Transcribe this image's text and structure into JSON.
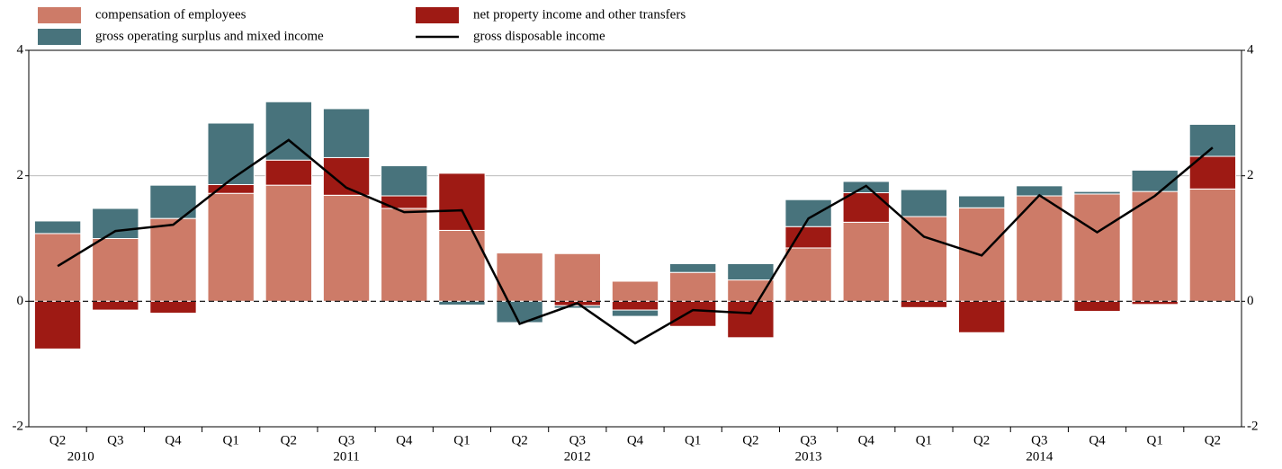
{
  "chart_data": {
    "type": "bar",
    "categories": [
      "Q2",
      "Q3",
      "Q4",
      "Q1",
      "Q2",
      "Q3",
      "Q4",
      "Q1",
      "Q2",
      "Q3",
      "Q4",
      "Q1",
      "Q2",
      "Q3",
      "Q4",
      "Q1",
      "Q2",
      "Q3",
      "Q4",
      "Q1",
      "Q2"
    ],
    "years": [
      "2010",
      "2011",
      "2012",
      "2013",
      "2014"
    ],
    "series": [
      {
        "name": "compensation of employees",
        "color": "#cd7b68",
        "values": [
          1.08,
          1.0,
          1.32,
          1.72,
          1.85,
          1.69,
          1.48,
          1.13,
          0.77,
          0.76,
          0.32,
          0.46,
          0.34,
          0.85,
          1.26,
          1.35,
          1.49,
          1.68,
          1.71,
          1.75,
          1.79
        ]
      },
      {
        "name": "net property income and other transfers",
        "color": "#9e1a14",
        "values": [
          -0.76,
          -0.14,
          -0.19,
          0.14,
          0.4,
          0.6,
          0.2,
          0.91,
          0,
          -0.07,
          -0.14,
          -0.4,
          -0.58,
          0.34,
          0.47,
          -0.1,
          -0.5,
          0,
          -0.16,
          -0.05,
          0.52
        ]
      },
      {
        "name": "gross operating surplus and mixed income",
        "color": "#48737c",
        "values": [
          0.2,
          0.48,
          0.53,
          0.98,
          0.93,
          0.78,
          0.48,
          -0.06,
          -0.34,
          -0.04,
          -0.1,
          0.14,
          0.26,
          0.43,
          0.18,
          0.43,
          0.19,
          0.16,
          0.04,
          0.34,
          0.51
        ]
      },
      {
        "name": "gross disposable income",
        "type": "line",
        "color": "#000000",
        "values": [
          0.56,
          1.12,
          1.22,
          1.94,
          2.57,
          1.81,
          1.42,
          1.45,
          -0.36,
          -0.03,
          -0.67,
          -0.14,
          -0.19,
          1.32,
          1.84,
          1.03,
          0.73,
          1.69,
          1.1,
          1.68,
          2.45
        ]
      }
    ],
    "ylim": [
      -2,
      4
    ],
    "yticks": [
      -2,
      0,
      2,
      4
    ],
    "grid": true
  }
}
